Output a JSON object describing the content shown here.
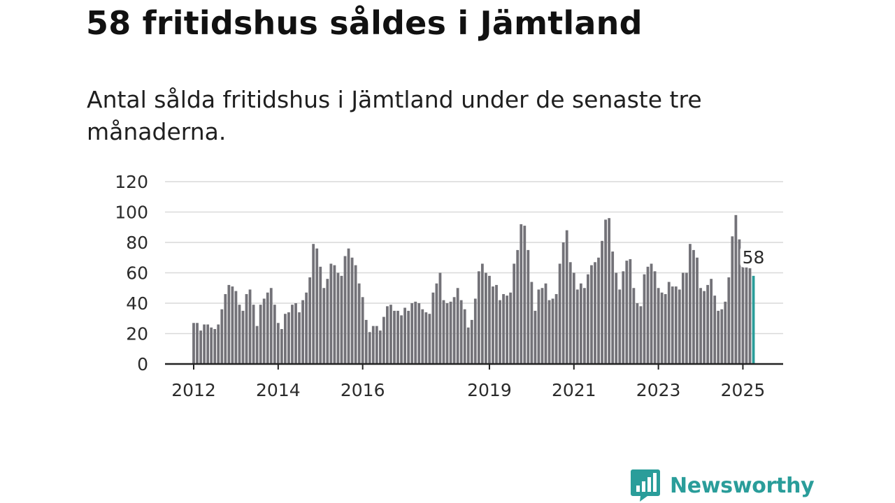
{
  "title": "58 fritidshus såldes i Jämtland",
  "subtitle": "Antal sålda fritidshus i Jämtland under de senaste tre månaderna.",
  "brand": {
    "name": "Newsworthy",
    "icon": "newsworthy-logo-icon",
    "color": "#2a9d9a"
  },
  "chart_data": {
    "type": "bar",
    "title": "58 fritidshus såldes i Jämtland",
    "subtitle": "Antal sålda fritidshus i Jämtland under de senaste tre månaderna.",
    "xlabel": "",
    "ylabel": "",
    "ylim": [
      0,
      120
    ],
    "y_ticks": [
      0,
      20,
      40,
      60,
      80,
      100,
      120
    ],
    "x_ticks": [
      "2012",
      "2014",
      "2016",
      "2019",
      "2021",
      "2023",
      "2025"
    ],
    "start": "2012-01",
    "frequency": "monthly",
    "grid": true,
    "bar_color": "#737278",
    "highlight_color": "#2a9d9a",
    "highlight_label": "58",
    "values": [
      27,
      27,
      22,
      26,
      26,
      24,
      23,
      26,
      36,
      46,
      52,
      51,
      48,
      39,
      35,
      46,
      49,
      39,
      25,
      39,
      43,
      47,
      50,
      39,
      27,
      23,
      33,
      34,
      39,
      40,
      34,
      42,
      47,
      57,
      79,
      76,
      64,
      50,
      56,
      66,
      65,
      60,
      58,
      71,
      76,
      70,
      65,
      53,
      44,
      29,
      21,
      25,
      25,
      22,
      31,
      38,
      39,
      35,
      35,
      32,
      37,
      35,
      40,
      41,
      40,
      36,
      34,
      33,
      47,
      53,
      60,
      42,
      40,
      41,
      44,
      50,
      42,
      36,
      24,
      29,
      43,
      61,
      66,
      60,
      58,
      51,
      52,
      42,
      46,
      45,
      47,
      66,
      75,
      92,
      91,
      75,
      54,
      35,
      49,
      50,
      53,
      42,
      43,
      46,
      66,
      80,
      88,
      67,
      60,
      49,
      53,
      50,
      59,
      65,
      67,
      70,
      81,
      95,
      96,
      74,
      60,
      49,
      61,
      68,
      69,
      50,
      40,
      38,
      59,
      64,
      66,
      61,
      50,
      47,
      46,
      54,
      51,
      51,
      49,
      60,
      60,
      79,
      75,
      70,
      50,
      48,
      52,
      56,
      45,
      35,
      36,
      41,
      57,
      84,
      98,
      82,
      70,
      65,
      63,
      58
    ]
  }
}
